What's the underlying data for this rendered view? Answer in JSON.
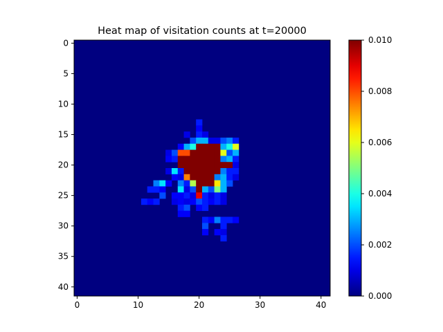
{
  "chart_data": {
    "type": "heatmap",
    "title": "Heat map of visitation counts at t=20000",
    "xlabel": "",
    "ylabel": "",
    "grid": false,
    "colormap": "jet",
    "background_value": 0.0,
    "x_ticks": [
      "0",
      "10",
      "20",
      "30",
      "40"
    ],
    "y_ticks": [
      "0",
      "5",
      "10",
      "15",
      "20",
      "25",
      "30",
      "35",
      "40"
    ],
    "x_range": [
      -0.5,
      41.5
    ],
    "y_range": [
      -0.5,
      41.5
    ],
    "y_inverted": true,
    "colorbar": {
      "min": 0.0,
      "max": 0.01,
      "ticks": [
        "0.000",
        "0.002",
        "0.004",
        "0.006",
        "0.008",
        "0.010"
      ]
    },
    "cells_note": "non-background cells as [column, row, value]; all other cells are 0",
    "cells": [
      [
        20,
        13,
        0.0015
      ],
      [
        20,
        14,
        0.0012
      ],
      [
        18,
        15,
        0.001
      ],
      [
        20,
        15,
        0.0015
      ],
      [
        21,
        15,
        0.001
      ],
      [
        19,
        16,
        0.002
      ],
      [
        20,
        16,
        0.003
      ],
      [
        21,
        16,
        0.003
      ],
      [
        22,
        16,
        0.001
      ],
      [
        23,
        16,
        0.001
      ],
      [
        24,
        16,
        0.002
      ],
      [
        25,
        16,
        0.0025
      ],
      [
        26,
        16,
        0.0015
      ],
      [
        17,
        17,
        0.0012
      ],
      [
        18,
        17,
        0.003
      ],
      [
        19,
        17,
        0.004
      ],
      [
        20,
        17,
        0.01
      ],
      [
        21,
        17,
        0.01
      ],
      [
        22,
        17,
        0.01
      ],
      [
        23,
        17,
        0.01
      ],
      [
        24,
        17,
        0.003
      ],
      [
        25,
        17,
        0.004
      ],
      [
        26,
        17,
        0.006
      ],
      [
        15,
        18,
        0.001
      ],
      [
        16,
        18,
        0.002
      ],
      [
        17,
        18,
        0.008
      ],
      [
        18,
        18,
        0.008
      ],
      [
        19,
        18,
        0.01
      ],
      [
        20,
        18,
        0.01
      ],
      [
        21,
        18,
        0.01
      ],
      [
        22,
        18,
        0.01
      ],
      [
        23,
        18,
        0.01
      ],
      [
        24,
        18,
        0.006
      ],
      [
        25,
        18,
        0.002
      ],
      [
        26,
        18,
        0.003
      ],
      [
        15,
        19,
        0.0012
      ],
      [
        16,
        19,
        0.0015
      ],
      [
        17,
        19,
        0.01
      ],
      [
        18,
        19,
        0.01
      ],
      [
        19,
        19,
        0.01
      ],
      [
        20,
        19,
        0.01
      ],
      [
        21,
        19,
        0.01
      ],
      [
        22,
        19,
        0.01
      ],
      [
        23,
        19,
        0.01
      ],
      [
        24,
        19,
        0.0025
      ],
      [
        25,
        19,
        0.003
      ],
      [
        26,
        19,
        0.0015
      ],
      [
        17,
        20,
        0.01
      ],
      [
        18,
        20,
        0.01
      ],
      [
        19,
        20,
        0.01
      ],
      [
        20,
        20,
        0.01
      ],
      [
        21,
        20,
        0.01
      ],
      [
        22,
        20,
        0.01
      ],
      [
        23,
        20,
        0.01
      ],
      [
        24,
        20,
        0.01
      ],
      [
        25,
        20,
        0.01
      ],
      [
        26,
        20,
        0.001
      ],
      [
        15,
        21,
        0.001
      ],
      [
        16,
        21,
        0.0035
      ],
      [
        17,
        21,
        0.0015
      ],
      [
        18,
        21,
        0.01
      ],
      [
        19,
        21,
        0.01
      ],
      [
        20,
        21,
        0.01
      ],
      [
        21,
        21,
        0.01
      ],
      [
        22,
        21,
        0.01
      ],
      [
        23,
        21,
        0.01
      ],
      [
        24,
        21,
        0.0025
      ],
      [
        25,
        21,
        0.0015
      ],
      [
        26,
        21,
        0.0015
      ],
      [
        16,
        22,
        0.0012
      ],
      [
        17,
        22,
        0.001
      ],
      [
        18,
        22,
        0.0075
      ],
      [
        19,
        22,
        0.01
      ],
      [
        20,
        22,
        0.01
      ],
      [
        21,
        22,
        0.01
      ],
      [
        22,
        22,
        0.01
      ],
      [
        23,
        22,
        0.0025
      ],
      [
        24,
        22,
        0.003
      ],
      [
        25,
        22,
        0.0015
      ],
      [
        26,
        22,
        0.001
      ],
      [
        13,
        23,
        0.0025
      ],
      [
        14,
        23,
        0.0035
      ],
      [
        15,
        23,
        0.0012
      ],
      [
        17,
        23,
        0.0025
      ],
      [
        18,
        23,
        0.0015
      ],
      [
        19,
        23,
        0.0055
      ],
      [
        20,
        23,
        0.01
      ],
      [
        21,
        23,
        0.01
      ],
      [
        22,
        23,
        0.01
      ],
      [
        23,
        23,
        0.0065
      ],
      [
        24,
        23,
        0.003
      ],
      [
        25,
        23,
        0.002
      ],
      [
        12,
        24,
        0.0015
      ],
      [
        13,
        24,
        0.0015
      ],
      [
        14,
        24,
        0.0012
      ],
      [
        17,
        24,
        0.0035
      ],
      [
        18,
        24,
        0.001
      ],
      [
        19,
        24,
        0.002
      ],
      [
        20,
        24,
        0.01
      ],
      [
        21,
        24,
        0.003
      ],
      [
        22,
        24,
        0.002
      ],
      [
        23,
        24,
        0.005
      ],
      [
        24,
        24,
        0.003
      ],
      [
        14,
        25,
        0.002
      ],
      [
        16,
        25,
        0.0012
      ],
      [
        17,
        25,
        0.0012
      ],
      [
        18,
        25,
        0.0015
      ],
      [
        19,
        25,
        0.001
      ],
      [
        20,
        25,
        0.009
      ],
      [
        21,
        25,
        0.0015
      ],
      [
        22,
        25,
        0.001
      ],
      [
        23,
        25,
        0.0015
      ],
      [
        24,
        25,
        0.001
      ],
      [
        11,
        26,
        0.0015
      ],
      [
        12,
        26,
        0.0012
      ],
      [
        13,
        26,
        0.0015
      ],
      [
        16,
        26,
        0.001
      ],
      [
        17,
        26,
        0.0012
      ],
      [
        18,
        26,
        0.001
      ],
      [
        19,
        26,
        0.0012
      ],
      [
        20,
        26,
        0.002
      ],
      [
        21,
        26,
        0.0015
      ],
      [
        22,
        26,
        0.0012
      ],
      [
        23,
        26,
        0.0015
      ],
      [
        24,
        26,
        0.001
      ],
      [
        17,
        27,
        0.0015
      ],
      [
        18,
        27,
        0.002
      ],
      [
        20,
        27,
        0.0012
      ],
      [
        21,
        27,
        0.0015
      ],
      [
        17,
        28,
        0.0012
      ],
      [
        18,
        28,
        0.0012
      ],
      [
        21,
        29,
        0.0015
      ],
      [
        22,
        29,
        0.0012
      ],
      [
        23,
        29,
        0.0025
      ],
      [
        24,
        29,
        0.0015
      ],
      [
        25,
        29,
        0.0015
      ],
      [
        26,
        29,
        0.0012
      ],
      [
        21,
        30,
        0.002
      ],
      [
        24,
        30,
        0.0015
      ],
      [
        21,
        31,
        0.0012
      ],
      [
        23,
        31,
        0.0012
      ],
      [
        24,
        31,
        0.001
      ],
      [
        24,
        32,
        0.0015
      ]
    ]
  }
}
